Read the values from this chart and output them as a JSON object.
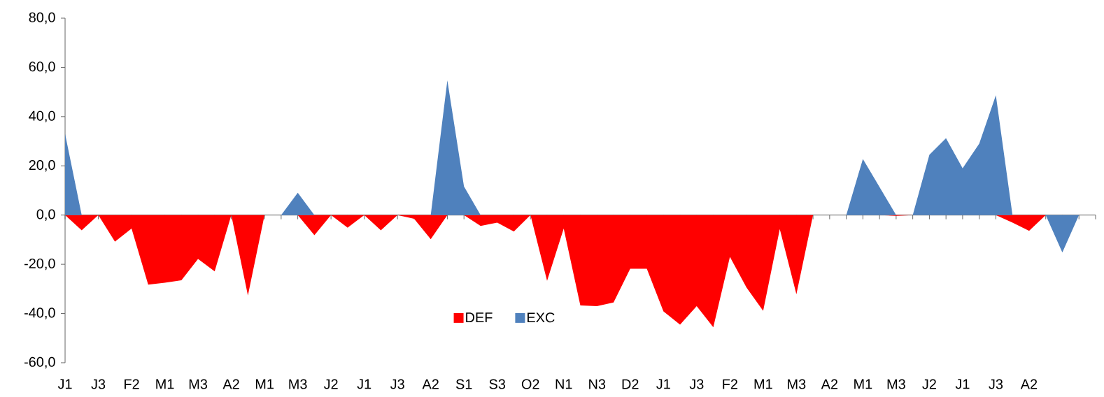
{
  "chart_data": {
    "type": "area",
    "categories": [
      "J1",
      null,
      "J3",
      null,
      "F2",
      null,
      "M1",
      null,
      "M3",
      null,
      "A2",
      null,
      "M1",
      null,
      "M3",
      null,
      "J2",
      null,
      "J1",
      null,
      "J3",
      null,
      "A2",
      null,
      "S1",
      null,
      "S3",
      null,
      "O2",
      null,
      "N1",
      null,
      "N3",
      null,
      "D2",
      null,
      "J1",
      null,
      "J3",
      null,
      "F2",
      null,
      "M1",
      null,
      "M3",
      null,
      "A2",
      null,
      "M1",
      null,
      "M3",
      null,
      "J2",
      null,
      "J1",
      null,
      "J3",
      null,
      "A2",
      null,
      null,
      null,
      null
    ],
    "series": [
      {
        "name": "DEF",
        "color": "#ff0000",
        "values": [
          0,
          -6.2,
          0,
          -10.8,
          -5.5,
          -28.3,
          -27.5,
          -26.5,
          -17.8,
          -22.9,
          0,
          -32.7,
          0,
          0,
          0,
          -8.2,
          0,
          -5.1,
          0,
          -6.2,
          0,
          -1.5,
          -9.8,
          0,
          0,
          -4.4,
          -3.1,
          -6.7,
          0,
          -26.7,
          -5.5,
          -36.7,
          -37.0,
          -35.5,
          -21.8,
          -21.8,
          -39.1,
          -44.5,
          -37.0,
          -45.6,
          -17.0,
          -29.5,
          -38.9,
          -5.7,
          -32.2,
          0,
          0,
          0,
          0,
          0,
          -0.3,
          0,
          0,
          0,
          0,
          0,
          0,
          -3.1,
          -6.4,
          0,
          0,
          0,
          0
        ]
      },
      {
        "name": "EXC",
        "color": "#4f81bd",
        "values": [
          33,
          0,
          0,
          0,
          0,
          0,
          0,
          0,
          0,
          0,
          0,
          0,
          0,
          0,
          9.1,
          0,
          0,
          0,
          0,
          0,
          0,
          0,
          0,
          54.7,
          11.6,
          0,
          0,
          0,
          0,
          0,
          0,
          0,
          0,
          0,
          0,
          0,
          0,
          0,
          0,
          0,
          0,
          0,
          0,
          0,
          0,
          0,
          0,
          0,
          22.8,
          11.4,
          0,
          0,
          24.5,
          31.2,
          19.0,
          29.0,
          48.7,
          0,
          0,
          0,
          -15.2,
          0,
          0
        ]
      }
    ],
    "ylim": [
      -60,
      80
    ],
    "yticks": [
      {
        "value": -60,
        "label": "-60,0"
      },
      {
        "value": -40,
        "label": "-40,0"
      },
      {
        "value": -20,
        "label": "-20,0"
      },
      {
        "value": 0,
        "label": "0,0"
      },
      {
        "value": 20,
        "label": "20,0"
      },
      {
        "value": 40,
        "label": "40,0"
      },
      {
        "value": 60,
        "label": "60,0"
      },
      {
        "value": 80,
        "label": "80,0"
      }
    ],
    "legend": "bottom"
  }
}
